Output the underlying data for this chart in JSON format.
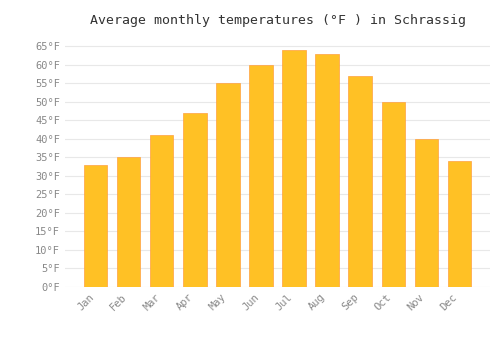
{
  "title": "Average monthly temperatures (°F ) in Schrassig",
  "months": [
    "Jan",
    "Feb",
    "Mar",
    "Apr",
    "May",
    "Jun",
    "Jul",
    "Aug",
    "Sep",
    "Oct",
    "Nov",
    "Dec"
  ],
  "values": [
    33,
    35,
    41,
    47,
    55,
    60,
    64,
    63,
    57,
    50,
    40,
    34
  ],
  "bar_color_main": "#FFC125",
  "bar_color_edge": "#FFA040",
  "background_color": "#ffffff",
  "grid_color": "#e8e8e8",
  "title_fontsize": 9.5,
  "tick_fontsize": 7.5,
  "ylim": [
    0,
    68
  ],
  "yticks": [
    0,
    5,
    10,
    15,
    20,
    25,
    30,
    35,
    40,
    45,
    50,
    55,
    60,
    65
  ]
}
